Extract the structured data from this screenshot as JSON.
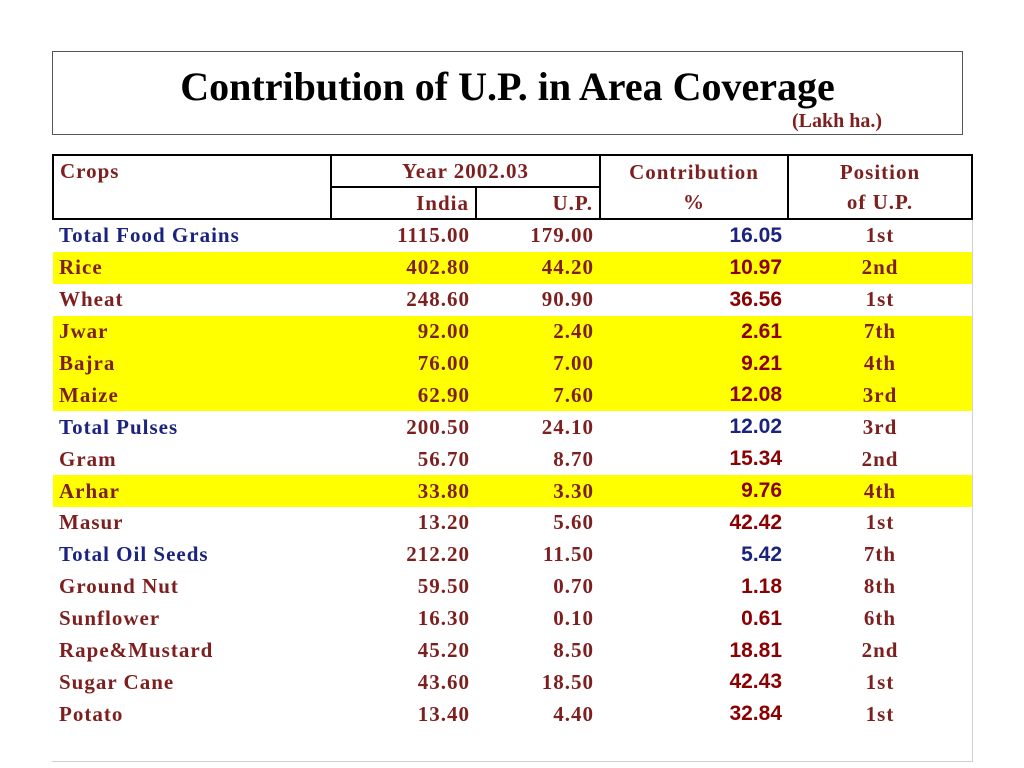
{
  "title": "Contribution of U.P. in Area Coverage",
  "unit": "(Lakh ha.)",
  "colors": {
    "highlight": "#ffff00",
    "total_text": "#1a237e",
    "item_text": "#7d1f1f",
    "contrib_text": "#8b0000"
  },
  "table": {
    "headers": {
      "crops": "Crops",
      "year": "Year 2002.03",
      "india": "India",
      "up": "U.P.",
      "contribution_line1": "Contribution",
      "contribution_line2": "%",
      "position_line1": "Position",
      "position_line2": "of U.P."
    },
    "rows": [
      {
        "crop": "Total Food Grains",
        "india": "1115.00",
        "up": "179.00",
        "contribution": "16.05",
        "position": "1st",
        "kind": "total",
        "highlight": false
      },
      {
        "crop": "Rice",
        "india": "402.80",
        "up": "44.20",
        "contribution": "10.97",
        "position": "2nd",
        "kind": "item",
        "highlight": true
      },
      {
        "crop": "Wheat",
        "india": "248.60",
        "up": "90.90",
        "contribution": "36.56",
        "position": "1st",
        "kind": "item",
        "highlight": false
      },
      {
        "crop": "Jwar",
        "india": "92.00",
        "up": "2.40",
        "contribution": "2.61",
        "position": "7th",
        "kind": "item",
        "highlight": true
      },
      {
        "crop": "Bajra",
        "india": "76.00",
        "up": "7.00",
        "contribution": "9.21",
        "position": "4th",
        "kind": "item",
        "highlight": true
      },
      {
        "crop": "Maize",
        "india": "62.90",
        "up": "7.60",
        "contribution": "12.08",
        "position": "3rd",
        "kind": "item",
        "highlight": true
      },
      {
        "crop": "Total Pulses",
        "india": "200.50",
        "up": "24.10",
        "contribution": "12.02",
        "position": "3rd",
        "kind": "total",
        "highlight": false
      },
      {
        "crop": "Gram",
        "india": "56.70",
        "up": "8.70",
        "contribution": "15.34",
        "position": "2nd",
        "kind": "item",
        "highlight": false
      },
      {
        "crop": "Arhar",
        "india": "33.80",
        "up": "3.30",
        "contribution": "9.76",
        "position": "4th",
        "kind": "item",
        "highlight": true
      },
      {
        "crop": "Masur",
        "india": "13.20",
        "up": "5.60",
        "contribution": "42.42",
        "position": "1st",
        "kind": "item",
        "highlight": false
      },
      {
        "crop": "Total Oil Seeds",
        "india": "212.20",
        "up": "11.50",
        "contribution": "5.42",
        "position": "7th",
        "kind": "total",
        "highlight": false
      },
      {
        "crop": "Ground Nut",
        "india": "59.50",
        "up": "0.70",
        "contribution": "1.18",
        "position": "8th",
        "kind": "item",
        "highlight": false
      },
      {
        "crop": "Sunflower",
        "india": "16.30",
        "up": "0.10",
        "contribution": "0.61",
        "position": "6th",
        "kind": "item",
        "highlight": false
      },
      {
        "crop": "Rape&Mustard",
        "india": "45.20",
        "up": "8.50",
        "contribution": "18.81",
        "position": "2nd",
        "kind": "item",
        "highlight": false
      },
      {
        "crop": "Sugar Cane",
        "india": "43.60",
        "up": "18.50",
        "contribution": "42.43",
        "position": "1st",
        "kind": "item",
        "highlight": false
      },
      {
        "crop": "Potato",
        "india": "13.40",
        "up": "4.40",
        "contribution": "32.84",
        "position": "1st",
        "kind": "item",
        "highlight": false
      }
    ]
  }
}
